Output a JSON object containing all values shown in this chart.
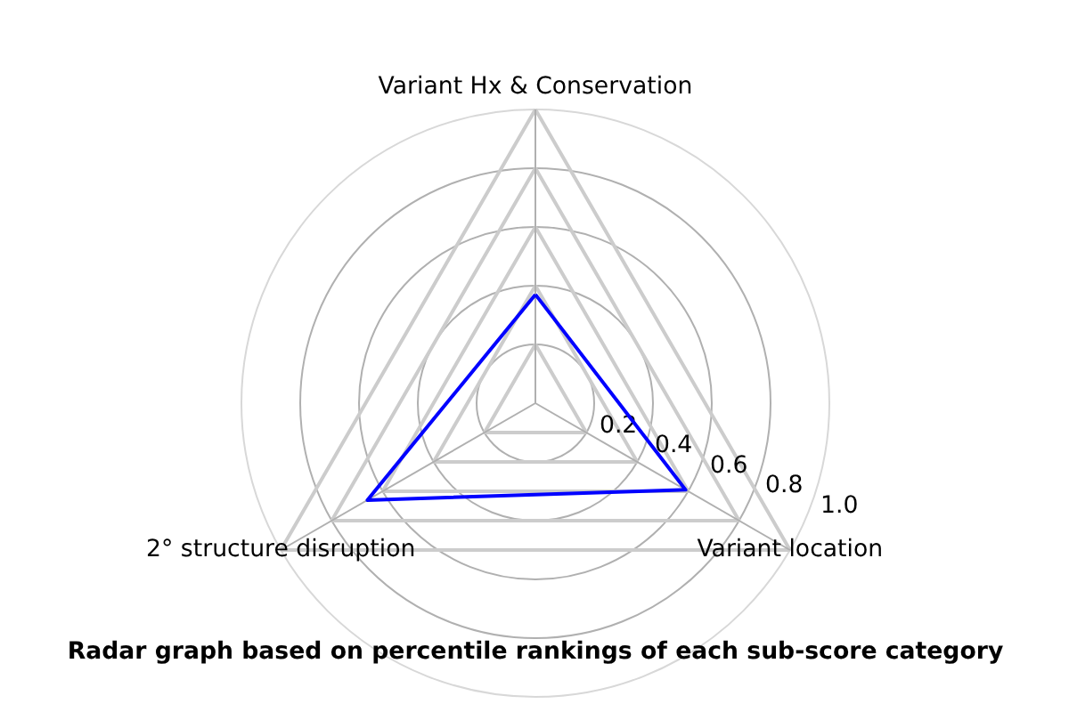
{
  "chart_data": {
    "type": "radar",
    "title": "Radar graph based on percentile rankings of each sub-score category",
    "categories": [
      "Variant Hx & Conservation",
      "Variant location",
      "2° structure disruption"
    ],
    "series": [
      {
        "color": "#0000ff",
        "values": [
          0.37,
          0.59,
          0.66
        ]
      }
    ],
    "ylim": [
      0,
      1
    ],
    "yticks": [
      0.2,
      0.4,
      0.6,
      0.8,
      {
        "value": 1.0,
        "label": "1.0"
      }
    ],
    "grid": true
  }
}
